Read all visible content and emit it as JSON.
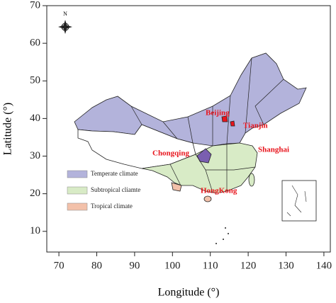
{
  "chart_data": {
    "type": "map",
    "xlabel": "Longitude (°)",
    "ylabel": "Latitude (°)",
    "xlim": [
      66.8,
      141.7
    ],
    "ylim": [
      4.5,
      70
    ],
    "xticks": [
      70,
      80,
      90,
      100,
      110,
      120,
      130,
      140
    ],
    "yticks": [
      10,
      20,
      30,
      40,
      50,
      60,
      70
    ],
    "legend": [
      {
        "name": "Temperate climate",
        "color": "#b3b3db"
      },
      {
        "name": "Subtropical cliamte",
        "color": "#d8ebc6"
      },
      {
        "name": "Tropical climate",
        "color": "#f3c1aa"
      }
    ],
    "cities": [
      "Beijing",
      "Tianjin",
      "Chongqing",
      "Shanghai",
      "HongKong"
    ],
    "compass": "N"
  }
}
